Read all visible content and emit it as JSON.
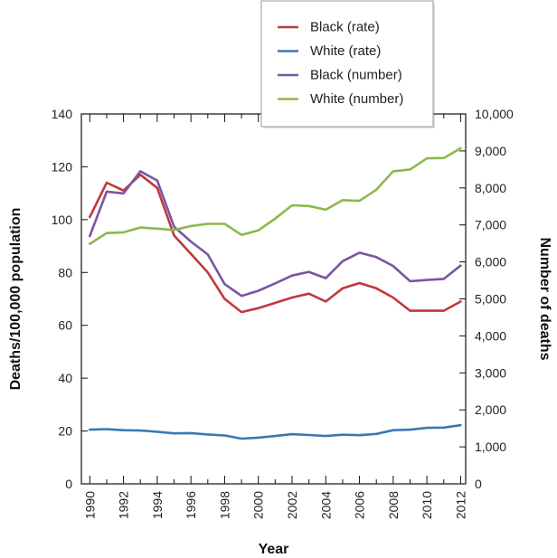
{
  "chart_data": {
    "type": "line",
    "x": [
      1990,
      1991,
      1992,
      1993,
      1994,
      1995,
      1996,
      1997,
      1998,
      1999,
      2000,
      2001,
      2002,
      2003,
      2004,
      2005,
      2006,
      2007,
      2008,
      2009,
      2010,
      2011,
      2012
    ],
    "xlabel": "Year",
    "x_ticks": [
      "1990",
      "1992",
      "1994",
      "1996",
      "1998",
      "2000",
      "2002",
      "2004",
      "2006",
      "2008",
      "2010",
      "2012"
    ],
    "xlim": [
      1989.5,
      2012.3
    ],
    "ylabel_left": "Deaths/100,000 population",
    "ylim_left": [
      0,
      140
    ],
    "y_ticks_left": [
      "0",
      "20",
      "40",
      "60",
      "80",
      "100",
      "120",
      "140"
    ],
    "ylabel_right": "Number of deaths",
    "ylim_right": [
      0,
      10000
    ],
    "y_ticks_right": [
      "0",
      "1,000",
      "2,000",
      "3,000",
      "4,000",
      "5,000",
      "6,000",
      "7,000",
      "8,000",
      "9,000",
      "10,000"
    ],
    "grid": false,
    "legend_position": "top-right",
    "series": [
      {
        "name": "Black (rate)",
        "axis": "left",
        "color": "#c0393b",
        "values": [
          101,
          114,
          111,
          117,
          112,
          94,
          87,
          80,
          70,
          65,
          66.5,
          68.5,
          70.5,
          72,
          69,
          74,
          76,
          74,
          70.5,
          65.5,
          65.5,
          65.5,
          69
        ]
      },
      {
        "name": "White (rate)",
        "axis": "left",
        "color": "#3a78b5",
        "values": [
          20.5,
          20.7,
          20.3,
          20.2,
          19.7,
          19.1,
          19.2,
          18.7,
          18.3,
          17.1,
          17.5,
          18.1,
          18.8,
          18.5,
          18.1,
          18.6,
          18.4,
          18.9,
          20.3,
          20.5,
          21.2,
          21.3,
          22.2
        ]
      },
      {
        "name": "Black (number)",
        "axis": "right",
        "color": "#7b55a1",
        "values": [
          6700,
          7900,
          7850,
          8450,
          8200,
          6950,
          6550,
          6200,
          5400,
          5080,
          5220,
          5420,
          5630,
          5730,
          5560,
          6020,
          6250,
          6130,
          5890,
          5480,
          5510,
          5540,
          5900
        ]
      },
      {
        "name": "White (number)",
        "axis": "right",
        "color": "#8db84a",
        "values": [
          6490,
          6780,
          6800,
          6930,
          6900,
          6860,
          6970,
          7030,
          7030,
          6730,
          6850,
          7170,
          7530,
          7510,
          7410,
          7670,
          7650,
          7950,
          8450,
          8500,
          8800,
          8810,
          9070
        ]
      }
    ]
  }
}
